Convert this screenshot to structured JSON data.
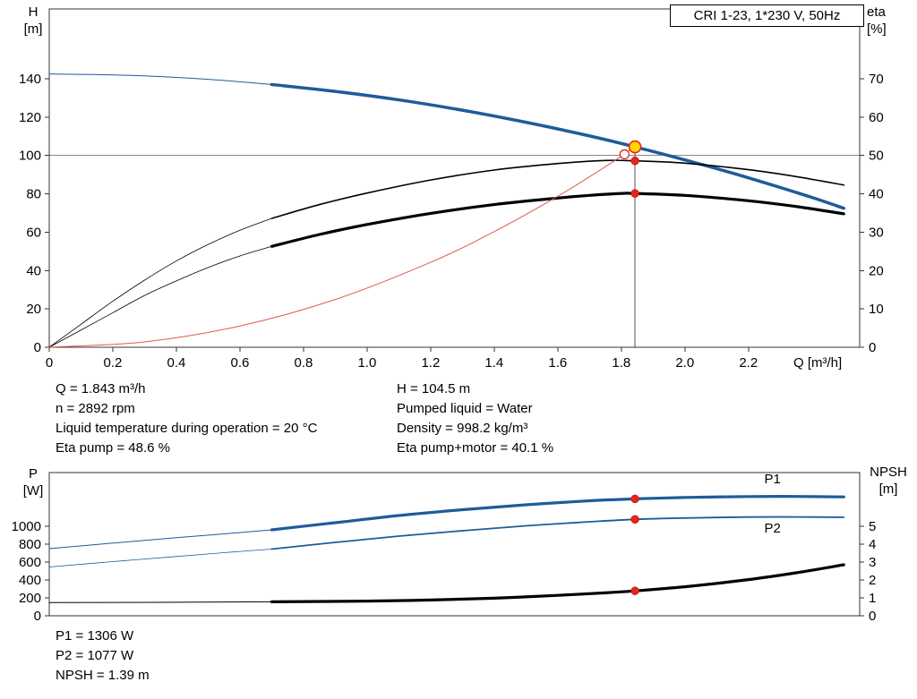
{
  "title_box": "CRI 1-23, 1*230 V, 50Hz",
  "axis_corner_labels": {
    "top_left": [
      "H",
      "[m]"
    ],
    "top_right": [
      "eta",
      "[%]"
    ],
    "bottom_left": [
      "P",
      "[W]"
    ],
    "bottom_right": [
      "NPSH",
      "[m]"
    ],
    "x_axis": "Q [m³/h]"
  },
  "info": {
    "left": [
      "Q = 1.843 m³/h",
      "n = 2892 rpm",
      "Liquid temperature during operation = 20 °C",
      "Eta pump = 48.6 %"
    ],
    "right": [
      "H = 104.5 m",
      "Pumped liquid = Water",
      "Density = 998.2 kg/m³",
      "Eta pump+motor = 40.1 %"
    ],
    "bottom": [
      "P1 = 1306 W",
      "P2 = 1077 W",
      "NPSH = 1.39 m"
    ]
  },
  "duty_point": {
    "Q": 1.843,
    "H": 104.5,
    "eta_pump": 48.6,
    "eta_pump_motor": 40.1,
    "P1": 1306,
    "P2": 1077,
    "NPSH": 1.39
  },
  "colors": {
    "blue": "#1e5c99",
    "black": "#000000",
    "red_curve": "#dd5a4f",
    "red_dot": "#e8231a",
    "yellow": "#ffd800",
    "frame": "#333333",
    "ref_line": "#888888",
    "duty_line": "#555555"
  },
  "chart_data": [
    {
      "type": "line",
      "name": "hq-eta-chart",
      "x_range": [
        0,
        2.55
      ],
      "x_ticks": {
        "values": [
          0,
          0.2,
          0.4,
          0.6,
          0.8,
          1,
          1.2,
          1.4,
          1.6,
          1.8,
          2,
          2.2
        ],
        "labels": [
          "0",
          "0.2",
          "0.4",
          "0.6",
          "0.8",
          "1.0",
          "1.2",
          "1.4",
          "1.6",
          "1.8",
          "2.0",
          "2.2"
        ]
      },
      "y_left": {
        "range": [
          0,
          176.4
        ],
        "ticks": [
          0,
          20,
          40,
          60,
          80,
          100,
          120,
          140
        ]
      },
      "y_right": {
        "range": [
          0,
          88.2
        ],
        "ticks": [
          0,
          10,
          20,
          30,
          40,
          50,
          60,
          70
        ]
      },
      "ref_lines": [
        {
          "dir": "h",
          "axis": "left",
          "value": 100
        },
        {
          "dir": "v",
          "axis": "left",
          "x": 1.843,
          "from": 0,
          "to": 104.5
        }
      ],
      "series": [
        {
          "name": "head-curve-low-flow",
          "axis": "left",
          "color": "blue",
          "width": 1,
          "points": [
            [
              0,
              142.5
            ],
            [
              0.25,
              141.8
            ],
            [
              0.5,
              139.7
            ],
            [
              0.7,
              137
            ]
          ]
        },
        {
          "name": "head-curve",
          "axis": "left",
          "color": "blue",
          "width": 3.5,
          "points": [
            [
              0.7,
              137
            ],
            [
              0.9,
              133.4
            ],
            [
              1.1,
              129
            ],
            [
              1.3,
              123.6
            ],
            [
              1.5,
              117.3
            ],
            [
              1.7,
              110.2
            ],
            [
              1.843,
              104.5
            ],
            [
              2,
              97.7
            ],
            [
              2.15,
              90.8
            ],
            [
              2.3,
              83.3
            ],
            [
              2.4,
              78.1
            ],
            [
              2.5,
              72.5
            ]
          ]
        },
        {
          "name": "eta-pump-low-flow",
          "axis": "right",
          "color": "black",
          "width": 0.8,
          "points": [
            [
              0,
              0
            ],
            [
              0.1,
              6
            ],
            [
              0.2,
              12
            ],
            [
              0.3,
              17.5
            ],
            [
              0.4,
              22.5
            ],
            [
              0.5,
              26.8
            ],
            [
              0.6,
              30.5
            ],
            [
              0.7,
              33.6
            ]
          ]
        },
        {
          "name": "eta-pump-curve",
          "axis": "right",
          "color": "black",
          "width": 1.6,
          "points": [
            [
              0.7,
              33.6
            ],
            [
              0.85,
              37.2
            ],
            [
              1,
              40.2
            ],
            [
              1.2,
              43.6
            ],
            [
              1.4,
              46.2
            ],
            [
              1.6,
              47.9
            ],
            [
              1.75,
              48.7
            ],
            [
              1.843,
              48.6
            ],
            [
              2,
              48
            ],
            [
              2.2,
              46.3
            ],
            [
              2.35,
              44.5
            ],
            [
              2.5,
              42.3
            ]
          ]
        },
        {
          "name": "eta-pump-motor-low-flow",
          "axis": "right",
          "color": "black",
          "width": 0.8,
          "points": [
            [
              0,
              0
            ],
            [
              0.1,
              4.5
            ],
            [
              0.2,
              9
            ],
            [
              0.3,
              13.5
            ],
            [
              0.4,
              17.3
            ],
            [
              0.5,
              20.8
            ],
            [
              0.6,
              23.8
            ],
            [
              0.7,
              26.3
            ]
          ]
        },
        {
          "name": "eta-pump-motor-curve",
          "axis": "right",
          "color": "black",
          "width": 3.2,
          "points": [
            [
              0.7,
              26.3
            ],
            [
              0.85,
              29.4
            ],
            [
              1,
              32
            ],
            [
              1.2,
              34.9
            ],
            [
              1.4,
              37.2
            ],
            [
              1.6,
              38.9
            ],
            [
              1.7,
              39.6
            ],
            [
              1.8,
              40.1
            ],
            [
              1.843,
              40.1
            ],
            [
              2,
              39.6
            ],
            [
              2.2,
              38.2
            ],
            [
              2.35,
              36.7
            ],
            [
              2.5,
              34.8
            ]
          ]
        },
        {
          "name": "system-curve",
          "axis": "left",
          "color": "red_curve",
          "width": 1,
          "points": [
            [
              0,
              0
            ],
            [
              0.3,
              2.8
            ],
            [
              0.6,
              11.1
            ],
            [
              0.9,
              24.9
            ],
            [
              1.2,
              44.3
            ],
            [
              1.4,
              60.3
            ],
            [
              1.6,
              78.7
            ],
            [
              1.75,
              94.2
            ],
            [
              1.843,
              104.5
            ]
          ]
        }
      ],
      "markers": [
        {
          "shape": "open",
          "axis": "left",
          "x": 1.81,
          "y": 100.6,
          "r": 5
        },
        {
          "shape": "dot",
          "axis": "right",
          "x": 1.843,
          "y": 48.6,
          "r": 4.5
        },
        {
          "shape": "dot",
          "axis": "right",
          "x": 1.843,
          "y": 40.1,
          "r": 4.5
        },
        {
          "shape": "duty",
          "axis": "left",
          "x": 1.843,
          "y": 104.5,
          "r": 6.5
        }
      ],
      "series_labels": []
    },
    {
      "type": "line",
      "name": "power-npsh-chart",
      "x_range": [
        0,
        2.55
      ],
      "y_left": {
        "range": [
          0,
          1600
        ],
        "ticks": [
          0,
          200,
          400,
          600,
          800,
          1000
        ]
      },
      "y_right": {
        "range": [
          0,
          8
        ],
        "ticks": [
          0,
          1,
          2,
          3,
          4,
          5
        ]
      },
      "ref_lines": [],
      "series": [
        {
          "name": "p1-low-flow",
          "axis": "left",
          "color": "blue",
          "width": 1,
          "points": [
            [
              0,
              750
            ],
            [
              0.2,
              812
            ],
            [
              0.4,
              872
            ],
            [
              0.55,
              915
            ],
            [
              0.7,
              960
            ]
          ]
        },
        {
          "name": "p1-curve",
          "axis": "left",
          "color": "blue",
          "width": 3.2,
          "points": [
            [
              0.7,
              960
            ],
            [
              0.9,
              1040
            ],
            [
              1.1,
              1120
            ],
            [
              1.3,
              1185
            ],
            [
              1.5,
              1240
            ],
            [
              1.7,
              1285
            ],
            [
              1.843,
              1306
            ],
            [
              2,
              1322
            ],
            [
              2.2,
              1332
            ],
            [
              2.35,
              1333
            ],
            [
              2.5,
              1328
            ]
          ]
        },
        {
          "name": "p2-low-flow",
          "axis": "left",
          "color": "blue",
          "width": 0.8,
          "points": [
            [
              0,
              545
            ],
            [
              0.2,
              605
            ],
            [
              0.4,
              662
            ],
            [
              0.55,
              705
            ],
            [
              0.7,
              745
            ]
          ]
        },
        {
          "name": "p2-curve",
          "axis": "left",
          "color": "blue",
          "width": 1.8,
          "points": [
            [
              0.7,
              745
            ],
            [
              0.9,
              820
            ],
            [
              1.1,
              890
            ],
            [
              1.3,
              950
            ],
            [
              1.5,
              1005
            ],
            [
              1.7,
              1050
            ],
            [
              1.843,
              1077
            ],
            [
              2,
              1092
            ],
            [
              2.2,
              1103
            ],
            [
              2.35,
              1104
            ],
            [
              2.5,
              1100
            ]
          ]
        },
        {
          "name": "npsh-low-flow",
          "axis": "right",
          "color": "black",
          "width": 1,
          "points": [
            [
              0,
              0.74
            ],
            [
              0.35,
              0.75
            ],
            [
              0.7,
              0.78
            ]
          ]
        },
        {
          "name": "npsh-curve",
          "axis": "right",
          "color": "black",
          "width": 3.2,
          "points": [
            [
              0.7,
              0.78
            ],
            [
              1,
              0.82
            ],
            [
              1.2,
              0.88
            ],
            [
              1.4,
              0.98
            ],
            [
              1.6,
              1.14
            ],
            [
              1.75,
              1.28
            ],
            [
              1.843,
              1.39
            ],
            [
              2,
              1.62
            ],
            [
              2.2,
              2.02
            ],
            [
              2.35,
              2.4
            ],
            [
              2.5,
              2.85
            ]
          ]
        }
      ],
      "markers": [
        {
          "shape": "dot",
          "axis": "left",
          "x": 1.843,
          "y": 1306,
          "r": 4.5
        },
        {
          "shape": "dot",
          "axis": "left",
          "x": 1.843,
          "y": 1077,
          "r": 4.5
        },
        {
          "shape": "dot",
          "axis": "right",
          "x": 1.843,
          "y": 1.39,
          "r": 4.5
        }
      ],
      "series_labels": [
        {
          "text": "P1",
          "axis": "left",
          "x": 2.25,
          "y": 1480
        },
        {
          "text": "P2",
          "axis": "left",
          "x": 2.25,
          "y": 930
        }
      ]
    }
  ]
}
